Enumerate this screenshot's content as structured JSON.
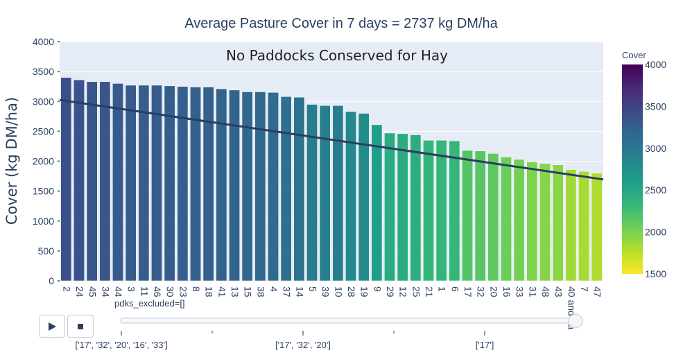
{
  "title": "Average Pasture Cover in 7 days = 2737 kg DM/ha",
  "colorbar_title": "Cover",
  "slider": {
    "current_label": "pdks_excluded=[]",
    "steps": [
      "['17', '32', '20', '16', '33']",
      "['17', '32', '20']",
      "['17']"
    ],
    "end_label": "40 and 0a"
  },
  "controls": {
    "play_icon": "play-icon",
    "stop_icon": "stop-icon"
  },
  "chart_data": {
    "type": "bar",
    "title": "Average Pasture Cover in 7 days = 2737 kg DM/ha",
    "annotation": "No Paddocks Conserved for Hay",
    "xlabel": "",
    "ylabel": "Cover (kg DM/ha)",
    "ylim": [
      0,
      4000
    ],
    "yticks": [
      0,
      500,
      1000,
      1500,
      2000,
      2500,
      3000,
      3500,
      4000
    ],
    "categories": [
      "2",
      "24",
      "45",
      "34",
      "44",
      "3",
      "11",
      "46",
      "30",
      "23",
      "8",
      "18",
      "41",
      "13",
      "15",
      "38",
      "4",
      "37",
      "14",
      "5",
      "39",
      "10",
      "28",
      "19",
      "9",
      "29",
      "12",
      "25",
      "21",
      "1",
      "6",
      "17",
      "32",
      "20",
      "16",
      "33",
      "31",
      "48",
      "43",
      "40 and 0a",
      "7",
      "47"
    ],
    "values": [
      3400,
      3360,
      3330,
      3330,
      3300,
      3270,
      3270,
      3270,
      3260,
      3250,
      3240,
      3240,
      3210,
      3190,
      3160,
      3160,
      3150,
      3080,
      3070,
      2950,
      2930,
      2930,
      2830,
      2800,
      2610,
      2470,
      2460,
      2440,
      2350,
      2350,
      2340,
      2180,
      2170,
      2130,
      2070,
      2030,
      1990,
      1960,
      1940,
      1860,
      1830,
      1800
    ],
    "trend_line": {
      "start": 3025,
      "end": 1695
    },
    "colorscale": "Viridis (reversed)",
    "color_range": [
      1500,
      4000
    ],
    "colorbar_ticks": [
      1500,
      2000,
      2500,
      3000,
      3500,
      4000
    ],
    "colors": {
      "plot_bg": "#e5ecf6",
      "grid": "#ffffff",
      "text": "#2a3f5f",
      "trend": "#2a3f5f",
      "zero_tick": "#2ca02c",
      "bar_outline": "#ffffff"
    },
    "grid": true,
    "legend": "none"
  }
}
